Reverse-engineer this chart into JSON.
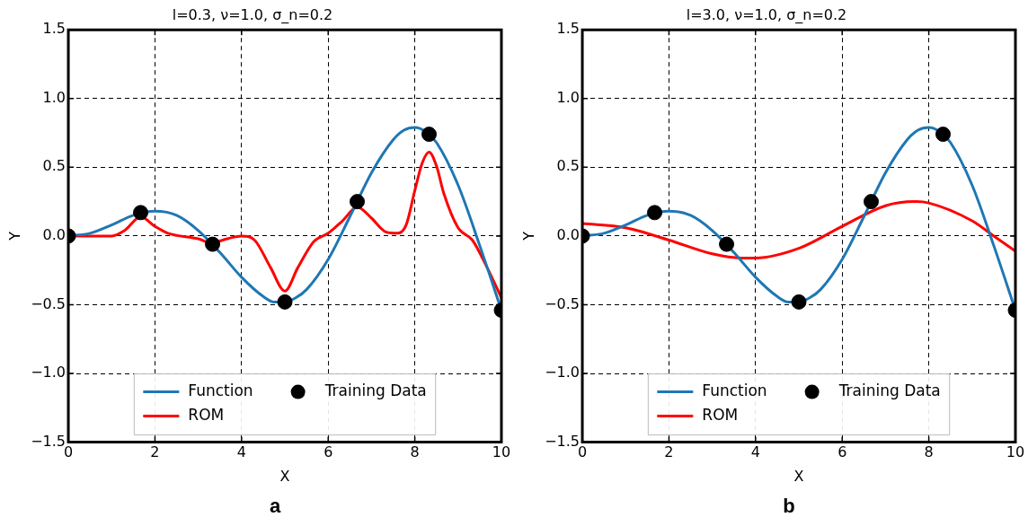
{
  "chart_data": [
    {
      "type": "line",
      "title": "l=0.3, ν=1.0, σ_n=0.2",
      "xlabel": "X",
      "ylabel": "Y",
      "xlim": [
        0,
        10
      ],
      "xticks": [
        0,
        2,
        4,
        6,
        8,
        10
      ],
      "ylim": [
        -1.5,
        1.5
      ],
      "yticks": [
        -1.5,
        {
          "value": -1,
          "label": "−1.0"
        },
        -0.5,
        {
          "value": 0,
          "label": "0.0"
        },
        0.5,
        {
          "value": 1,
          "label": "1.0"
        },
        1.5
      ],
      "grid": true,
      "legend": "bottom",
      "annotations": [
        "a"
      ],
      "series": [
        {
          "name": "Function",
          "type": "line",
          "color": "#1f77b4",
          "x": [
            0,
            0.5,
            1,
            1.5,
            2,
            2.5,
            3,
            3.5,
            4,
            4.5,
            4.75,
            5,
            5.25,
            5.5,
            6,
            6.5,
            7,
            7.5,
            7.75,
            8,
            8.25,
            8.5,
            9,
            9.5,
            10
          ],
          "values": [
            0,
            0.02,
            0.08,
            0.15,
            0.18,
            0.15,
            0.04,
            -0.12,
            -0.3,
            -0.44,
            -0.48,
            -0.48,
            -0.45,
            -0.39,
            -0.17,
            0.14,
            0.46,
            0.7,
            0.77,
            0.79,
            0.76,
            0.68,
            0.37,
            -0.07,
            -0.54
          ]
        },
        {
          "name": "ROM",
          "type": "line",
          "color": "#ff0000",
          "x": [
            0,
            1,
            1.3,
            1.67,
            2,
            2.3,
            3,
            3.3,
            3.67,
            4,
            4.3,
            4.67,
            5,
            5.3,
            5.67,
            6,
            6.33,
            6.67,
            7,
            7.33,
            7.6,
            7.8,
            8,
            8.17,
            8.33,
            8.5,
            8.67,
            9,
            9.33,
            9.67,
            10
          ],
          "values": [
            0,
            0,
            0.04,
            0.14,
            0.07,
            0.02,
            -0.02,
            -0.05,
            -0.02,
            0,
            -0.03,
            -0.23,
            -0.4,
            -0.23,
            -0.04,
            0.02,
            0.11,
            0.21,
            0.13,
            0.03,
            0.02,
            0.08,
            0.33,
            0.53,
            0.61,
            0.51,
            0.31,
            0.06,
            -0.03,
            -0.23,
            -0.45
          ]
        },
        {
          "name": "Training Data",
          "type": "scatter",
          "marker": "circle",
          "color": "#000000",
          "x": [
            0,
            1.67,
            3.33,
            5,
            6.67,
            8.33,
            10
          ],
          "values": [
            0,
            0.17,
            -0.06,
            -0.48,
            0.25,
            0.74,
            -0.54
          ]
        }
      ]
    },
    {
      "type": "line",
      "title": "l=3.0, ν=1.0, σ_n=0.2",
      "xlabel": "X",
      "ylabel": "Y",
      "xlim": [
        0,
        10
      ],
      "xticks": [
        0,
        2,
        4,
        6,
        8,
        10
      ],
      "ylim": [
        -1.5,
        1.5
      ],
      "yticks": [
        -1.5,
        {
          "value": -1,
          "label": "−1.0"
        },
        -0.5,
        {
          "value": 0,
          "label": "0.0"
        },
        0.5,
        {
          "value": 1,
          "label": "1.0"
        },
        1.5
      ],
      "grid": true,
      "legend": "bottom",
      "annotations": [
        "b"
      ],
      "series": [
        {
          "name": "Function",
          "type": "line",
          "color": "#1f77b4",
          "x": [
            0,
            0.5,
            1,
            1.5,
            2,
            2.5,
            3,
            3.5,
            4,
            4.5,
            4.75,
            5,
            5.25,
            5.5,
            6,
            6.5,
            7,
            7.5,
            7.75,
            8,
            8.25,
            8.5,
            9,
            9.5,
            10
          ],
          "values": [
            0,
            0.02,
            0.08,
            0.15,
            0.18,
            0.15,
            0.04,
            -0.12,
            -0.3,
            -0.44,
            -0.48,
            -0.48,
            -0.45,
            -0.39,
            -0.17,
            0.14,
            0.46,
            0.7,
            0.77,
            0.79,
            0.76,
            0.68,
            0.37,
            -0.07,
            -0.54
          ]
        },
        {
          "name": "ROM",
          "type": "line",
          "color": "#ff0000",
          "x": [
            0,
            1,
            2,
            3,
            3.67,
            4,
            5,
            6,
            7,
            7.7,
            8,
            9,
            9.5,
            10
          ],
          "values": [
            0.09,
            0.06,
            -0.03,
            -0.13,
            -0.16,
            -0.16,
            -0.09,
            0.07,
            0.22,
            0.25,
            0.24,
            0.11,
            0,
            -0.11
          ]
        },
        {
          "name": "Training Data",
          "type": "scatter",
          "marker": "circle",
          "color": "#000000",
          "x": [
            0,
            1.67,
            3.33,
            5,
            6.67,
            8.33,
            10
          ],
          "values": [
            0,
            0.17,
            -0.06,
            -0.48,
            0.25,
            0.74,
            -0.54
          ]
        }
      ]
    }
  ]
}
